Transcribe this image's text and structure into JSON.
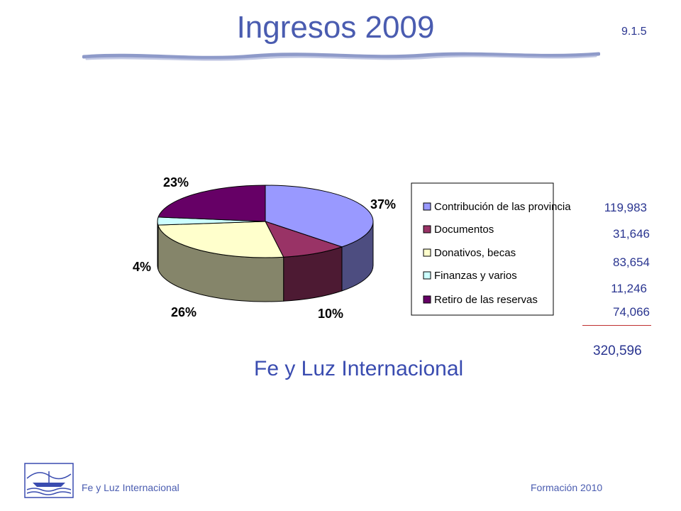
{
  "slide": {
    "title": "Ingresos 2009",
    "number": "9.1.5",
    "subtitle": "Fe y Luz Internacional",
    "footer_left": "Fe y Luz Internacional",
    "footer_right": "Formación  2010"
  },
  "chart_data": {
    "type": "pie",
    "style": "3d",
    "legend_position": "right",
    "categories": [
      "Contribución de las provincia",
      "Documentos",
      "Donativos, becas",
      "Finanzas y varios",
      "Retiro de las reservas"
    ],
    "values": [
      119983,
      31646,
      83654,
      11246,
      74066
    ],
    "value_labels": [
      "119,983",
      "31,646",
      "83,654",
      "11,246",
      "74,066"
    ],
    "percent_labels": [
      "37%",
      "10%",
      "26%",
      "4%",
      "23%"
    ],
    "total_label": "320,596",
    "colors": [
      "#9999ff",
      "#993366",
      "#ffffcc",
      "#ccffff",
      "#660066"
    ]
  }
}
